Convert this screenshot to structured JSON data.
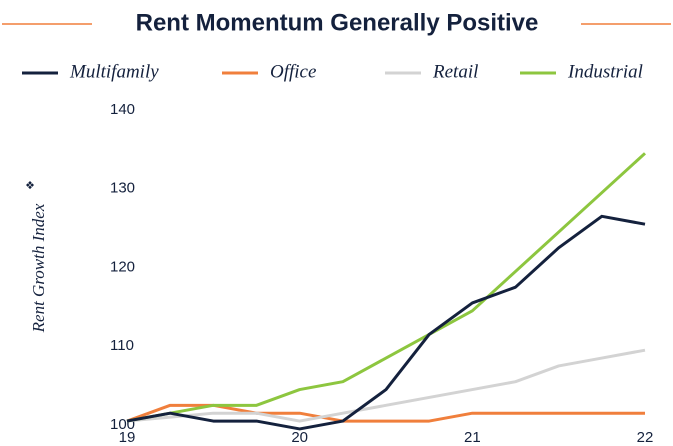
{
  "chart_data": {
    "type": "line",
    "title": "Rent Momentum Generally Positive",
    "ylabel": "Rent Growth Index",
    "ylabel_note": "❖",
    "x": [
      19,
      19.25,
      19.5,
      19.75,
      20,
      20.25,
      20.5,
      20.75,
      21,
      21.25,
      21.5,
      21.75,
      22
    ],
    "xlim": [
      19,
      22
    ],
    "xticks": [
      19,
      20,
      21,
      22
    ],
    "ylim": [
      100,
      140
    ],
    "yticks": [
      100,
      110,
      120,
      130,
      140
    ],
    "grid": false,
    "legend": "top",
    "series": [
      {
        "name": "Multifamily",
        "color": "#14213d",
        "values": [
          100.5,
          101.5,
          100.5,
          100.5,
          99.5,
          100.5,
          104.5,
          111.5,
          115.5,
          117.5,
          122.5,
          126.5,
          125.5
        ]
      },
      {
        "name": "Office",
        "color": "#f07f3c",
        "values": [
          100.5,
          102.5,
          102.5,
          101.5,
          101.5,
          100.5,
          100.5,
          100.5,
          101.5,
          101.5,
          101.5,
          101.5,
          101.5
        ]
      },
      {
        "name": "Retail",
        "color": "#d3d3d3",
        "values": [
          100.5,
          101,
          101.5,
          101.5,
          100.5,
          101.5,
          102.5,
          103.5,
          104.5,
          105.5,
          107.5,
          108.5,
          109.5
        ]
      },
      {
        "name": "Industrial",
        "color": "#8dc63f",
        "values": [
          100.5,
          101.5,
          102.5,
          102.5,
          104.5,
          105.5,
          108.5,
          111.5,
          114.5,
          119.5,
          124.5,
          129.5,
          134.5
        ]
      }
    ]
  }
}
